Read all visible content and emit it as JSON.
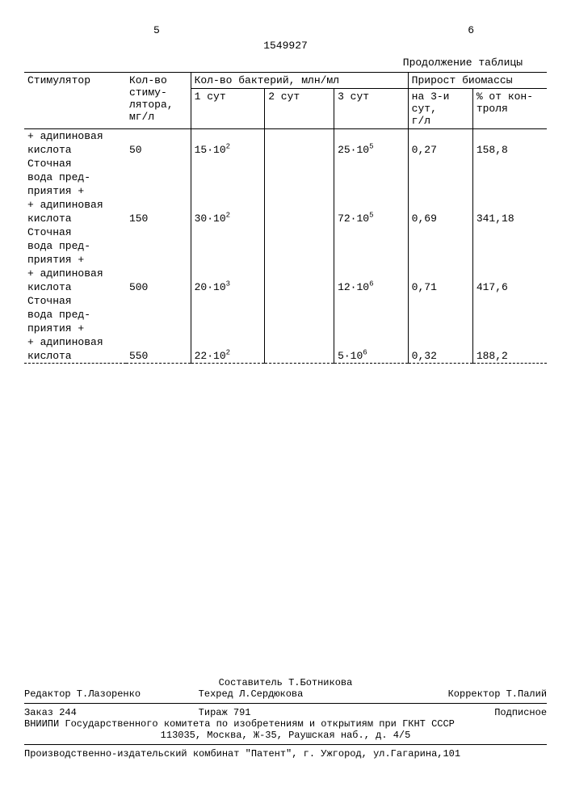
{
  "page_left": "5",
  "page_right": "6",
  "doc_number": "1549927",
  "continuation_label": "Продолжение таблицы",
  "headers": {
    "stimulator": "Стимулятор",
    "amount": "Кол-во\nстиму-\nлятора,\nмг/л",
    "bacteria_group": "Кол-во бактерий, млн/мл",
    "day1": "1 сут",
    "day2": "2 сут",
    "day3": "3 сут",
    "biomass_group": "Прирост биомассы",
    "b_day3": "на 3-и\nсут,\nг/л",
    "b_pct": "% от кон-\nтроля"
  },
  "rows": [
    {
      "stim": [
        "+ адипиновая",
        "кислота",
        "Сточная",
        "вода пред-",
        "приятия +"
      ],
      "amount": "50",
      "d1_base": "15·10",
      "d1_exp": "2",
      "d2": "",
      "d3_base": "25·10",
      "d3_exp": "5",
      "b1": "0,27",
      "b2": "158,8"
    },
    {
      "stim": [
        "+ адипиновая",
        "кислота",
        "Сточная",
        "вода пред-",
        "приятия +"
      ],
      "amount": "150",
      "d1_base": "30·10",
      "d1_exp": "2",
      "d2": "",
      "d3_base": "72·10",
      "d3_exp": "5",
      "b1": "0,69",
      "b2": "341,18"
    },
    {
      "stim": [
        "+ адипиновая",
        "кислота",
        "Сточная",
        "вода пред-",
        "приятия +"
      ],
      "amount": "500",
      "d1_base": "20·10",
      "d1_exp": "3",
      "d2": "",
      "d3_base": "12·10",
      "d3_exp": "6",
      "b1": "0,71",
      "b2": "417,6"
    },
    {
      "stim": [
        "+ адипиновая",
        "кислота"
      ],
      "amount": "550",
      "d1_base": "22·10",
      "d1_exp": "2",
      "d2": "",
      "d3_base": "5·10",
      "d3_exp": "6",
      "b1": "0,32",
      "b2": "188,2"
    }
  ],
  "footer": {
    "compiler": "Составитель Т.Ботникова",
    "editor": "Редактор Т.Лазоренко",
    "techred": "Техред Л.Сердюкова",
    "corrector": "Корректор Т.Палий",
    "order": "Заказ 244",
    "tirazh": "Тираж 791",
    "subscription": "Подписное",
    "org1": "ВНИИПИ Государственного комитета по изобретениям и открытиям при ГКНТ СССР",
    "addr1": "113035, Москва, Ж-35, Раушская наб., д. 4/5",
    "org2": "Производственно-издательский комбинат \"Патент\", г. Ужгород, ул.Гагарина,101"
  }
}
